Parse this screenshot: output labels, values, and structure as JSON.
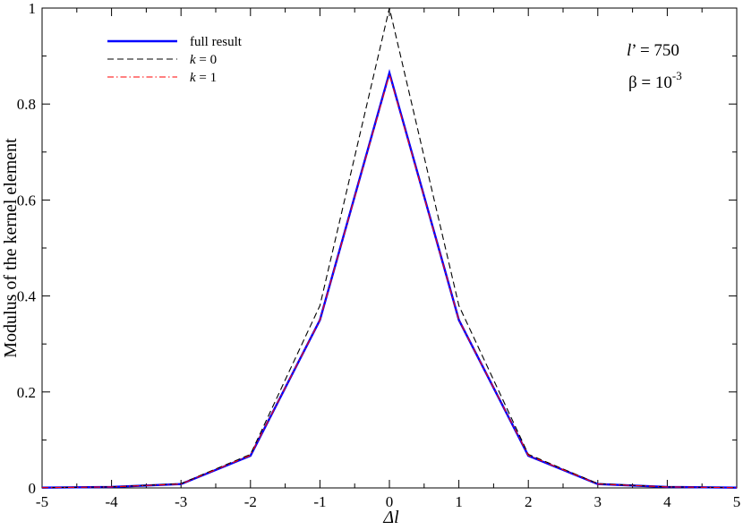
{
  "chart_data": {
    "type": "line",
    "xlabel": "Δl",
    "ylabel": "Modulus of the kernel element",
    "xlim": [
      -5,
      5
    ],
    "ylim": [
      0,
      1
    ],
    "xticks": [
      "-5",
      "-4",
      "-3",
      "-2",
      "-1",
      "0",
      "1",
      "2",
      "3",
      "4",
      "5"
    ],
    "yticks": [
      "0",
      "0.2",
      "0.4",
      "0.6",
      "0.8",
      "1"
    ],
    "x": [
      -5,
      -4,
      -3,
      -2,
      -1,
      0,
      1,
      2,
      3,
      4,
      5
    ],
    "legend_position": "top-left",
    "grid": false,
    "series": [
      {
        "name": "full result",
        "name_var": "",
        "name_rest": "",
        "color": "#0000ff",
        "style": "solid",
        "values": [
          0.0005,
          0.002,
          0.008,
          0.067,
          0.35,
          0.865,
          0.35,
          0.067,
          0.008,
          0.002,
          0.0005
        ]
      },
      {
        "name": "",
        "name_var": "k",
        "name_rest": " = 0",
        "color": "#000000",
        "style": "dashed",
        "values": [
          0.0005,
          0.002,
          0.009,
          0.07,
          0.38,
          1.0,
          0.38,
          0.07,
          0.009,
          0.002,
          0.0005
        ]
      },
      {
        "name": "",
        "name_var": "k",
        "name_rest": " = 1",
        "color": "#ff0000",
        "style": "dashdot",
        "values": [
          0.0005,
          0.002,
          0.008,
          0.068,
          0.35,
          0.862,
          0.35,
          0.068,
          0.008,
          0.002,
          0.0005
        ]
      }
    ],
    "annotations": {
      "lprime_var": "l",
      "lprime_rest": "’ = 750",
      "beta_base": "β = 10",
      "beta_exp": "-3"
    }
  }
}
